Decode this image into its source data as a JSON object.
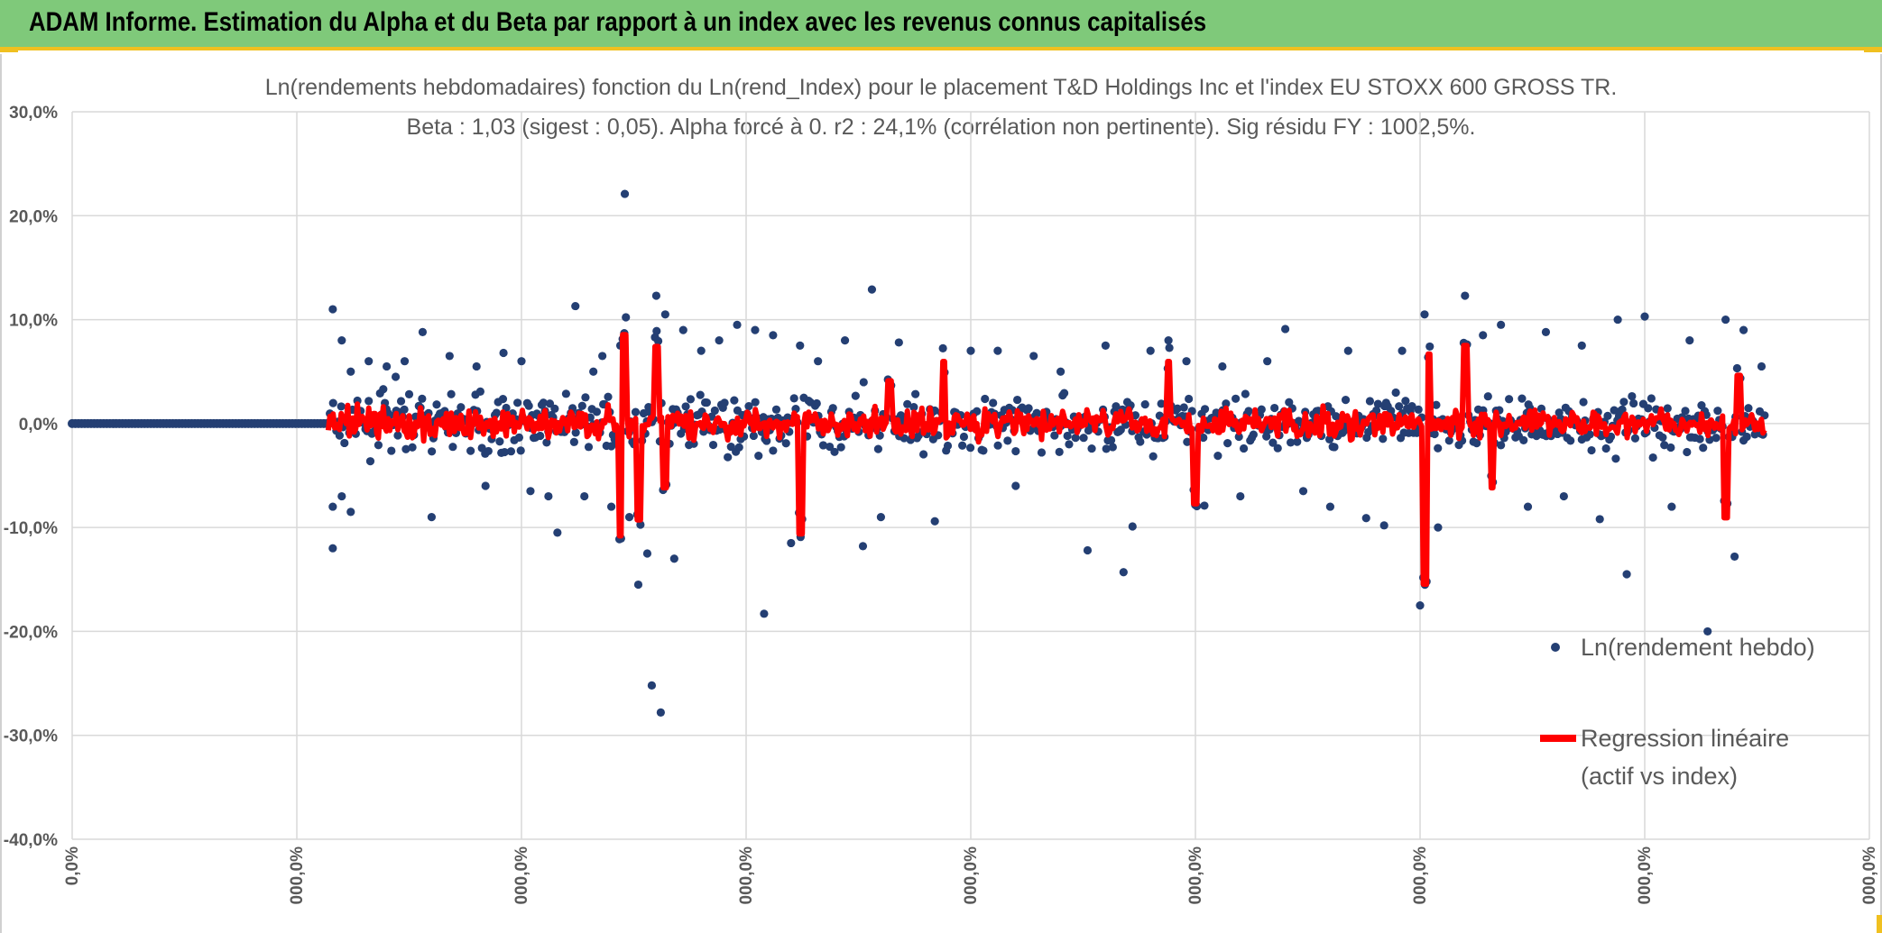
{
  "header": {
    "title": "ADAM Informe. Estimation du Alpha et du Beta par rapport à un index avec les revenus connus capitalisés"
  },
  "colors": {
    "header_bg": "#7fc97a",
    "accent": "#f0c020",
    "scatter": "#243f73",
    "regression": "#ff0000",
    "grid": "#d9d9d9"
  },
  "chart_data": {
    "type": "scatter",
    "title": "Ln(rendements hebdomadaires) fonction du Ln(rend_Index) pour le placement T&D Holdings Inc et l'index EU STOXX 600 GROSS TR.",
    "subtitle": "Beta : 1,03 (sigest : 0,05). Alpha forcé à 0. r2 : 24,1% (corrélation non pertinente). Sig résidu FY : 1002,5%.",
    "ylim": [
      -0.4,
      0.3
    ],
    "y_ticks": [
      "30,0%",
      "20,0%",
      "10,0%",
      "0,0%",
      "-10,0%",
      "-20,0%",
      "-30,0%",
      "-40,0%"
    ],
    "x_ticks": [
      "0,0%",
      "000,0%",
      "000,0%",
      "000,0%",
      "000,0%",
      "000,0%",
      "000,0%",
      "000,0%",
      "000,0%"
    ],
    "grid": true,
    "legend_position": "right",
    "series": [
      {
        "name": "Ln(rendement hebdo)",
        "kind": "scatter",
        "points": [
          [
            0.29,
            -0.12
          ],
          [
            0.29,
            0.11
          ],
          [
            0.29,
            -0.08
          ],
          [
            0.3,
            0.08
          ],
          [
            0.3,
            -0.07
          ],
          [
            0.31,
            0.05
          ],
          [
            0.31,
            -0.085
          ],
          [
            0.33,
            0.06
          ],
          [
            0.35,
            0.055
          ],
          [
            0.36,
            0.045
          ],
          [
            0.37,
            0.06
          ],
          [
            0.39,
            0.088
          ],
          [
            0.4,
            -0.09
          ],
          [
            0.42,
            0.065
          ],
          [
            0.45,
            0.055
          ],
          [
            0.46,
            -0.06
          ],
          [
            0.48,
            0.068
          ],
          [
            0.5,
            0.06
          ],
          [
            0.51,
            -0.065
          ],
          [
            0.53,
            -0.07
          ],
          [
            0.54,
            -0.105
          ],
          [
            0.56,
            0.113
          ],
          [
            0.57,
            -0.07
          ],
          [
            0.58,
            0.05
          ],
          [
            0.59,
            0.065
          ],
          [
            0.6,
            -0.08
          ],
          [
            0.61,
            0.075
          ],
          [
            0.615,
            0.221
          ],
          [
            0.62,
            -0.09
          ],
          [
            0.63,
            -0.155
          ],
          [
            0.64,
            -0.125
          ],
          [
            0.645,
            -0.252
          ],
          [
            0.65,
            0.123
          ],
          [
            0.655,
            -0.278
          ],
          [
            0.66,
            0.105
          ],
          [
            0.67,
            -0.13
          ],
          [
            0.68,
            0.09
          ],
          [
            0.7,
            0.07
          ],
          [
            0.72,
            0.08
          ],
          [
            0.74,
            0.095
          ],
          [
            0.76,
            0.09
          ],
          [
            0.77,
            -0.183
          ],
          [
            0.78,
            0.085
          ],
          [
            0.8,
            -0.115
          ],
          [
            0.81,
            0.075
          ],
          [
            0.83,
            0.06
          ],
          [
            0.86,
            0.08
          ],
          [
            0.88,
            -0.118
          ],
          [
            0.89,
            0.129
          ],
          [
            0.9,
            -0.09
          ],
          [
            0.92,
            0.078
          ],
          [
            0.96,
            -0.094
          ],
          [
            1.0,
            0.07
          ],
          [
            1.03,
            0.07
          ],
          [
            1.05,
            -0.06
          ],
          [
            1.07,
            0.065
          ],
          [
            1.1,
            0.05
          ],
          [
            1.13,
            -0.122
          ],
          [
            1.15,
            0.075
          ],
          [
            1.17,
            -0.143
          ],
          [
            1.18,
            -0.099
          ],
          [
            1.2,
            0.07
          ],
          [
            1.22,
            0.08
          ],
          [
            1.24,
            0.06
          ],
          [
            1.26,
            -0.079
          ],
          [
            1.28,
            0.055
          ],
          [
            1.3,
            -0.07
          ],
          [
            1.33,
            0.06
          ],
          [
            1.35,
            0.091
          ],
          [
            1.37,
            -0.065
          ],
          [
            1.4,
            -0.08
          ],
          [
            1.42,
            0.07
          ],
          [
            1.44,
            -0.091
          ],
          [
            1.46,
            -0.098
          ],
          [
            1.48,
            0.07
          ],
          [
            1.5,
            -0.175
          ],
          [
            1.505,
            0.105
          ],
          [
            1.52,
            -0.1
          ],
          [
            1.55,
            0.123
          ],
          [
            1.57,
            0.085
          ],
          [
            1.59,
            0.095
          ],
          [
            1.62,
            -0.08
          ],
          [
            1.64,
            0.088
          ],
          [
            1.66,
            -0.07
          ],
          [
            1.68,
            0.075
          ],
          [
            1.7,
            -0.092
          ],
          [
            1.72,
            0.1
          ],
          [
            1.73,
            -0.145
          ],
          [
            1.75,
            0.103
          ],
          [
            1.78,
            -0.08
          ],
          [
            1.8,
            0.08
          ],
          [
            1.82,
            -0.2
          ],
          [
            1.84,
            0.1
          ],
          [
            1.85,
            -0.128
          ],
          [
            1.86,
            0.09
          ],
          [
            1.88,
            0.055
          ]
        ]
      },
      {
        "name": "Regression linéaire (actif vs index)",
        "kind": "line",
        "spikes": [
          [
            0.61,
            -0.105
          ],
          [
            0.615,
            0.083
          ],
          [
            0.63,
            -0.09
          ],
          [
            0.65,
            0.072
          ],
          [
            0.66,
            -0.06
          ],
          [
            0.81,
            -0.103
          ],
          [
            0.91,
            0.04
          ],
          [
            0.97,
            0.058
          ],
          [
            1.22,
            0.058
          ],
          [
            1.25,
            -0.075
          ],
          [
            1.505,
            -0.15
          ],
          [
            1.51,
            0.065
          ],
          [
            1.55,
            0.073
          ],
          [
            1.58,
            -0.06
          ],
          [
            1.84,
            -0.088
          ],
          [
            1.855,
            0.045
          ]
        ]
      }
    ]
  },
  "legend": {
    "item1": "Ln(rendement hebdo)",
    "item2_line1": "Regression linéaire",
    "item2_line2": "(actif vs index)"
  }
}
